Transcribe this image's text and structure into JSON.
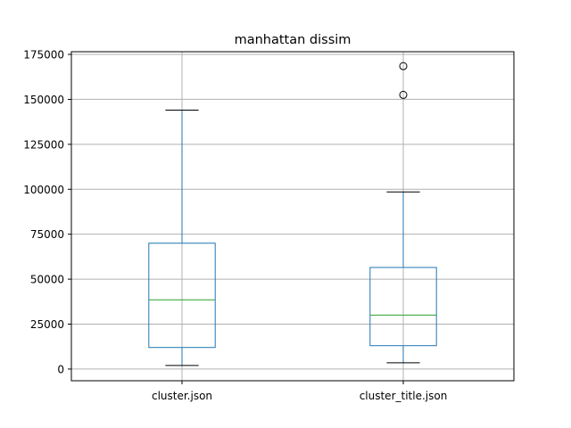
{
  "chart_data": {
    "type": "boxplot",
    "title": "manhattan dissim",
    "xlabel": "",
    "ylabel": "",
    "categories": [
      "cluster.json",
      "cluster_title.json"
    ],
    "boxes": [
      {
        "category": "cluster.json",
        "whisker_low": 2000,
        "q1": 12000,
        "median": 38500,
        "q3": 70000,
        "whisker_high": 144000,
        "outliers": []
      },
      {
        "category": "cluster_title.json",
        "whisker_low": 3500,
        "q1": 13000,
        "median": 30000,
        "q3": 56500,
        "whisker_high": 98500,
        "outliers": [
          152500,
          168500
        ]
      }
    ],
    "y_ticks": [
      0,
      25000,
      50000,
      75000,
      100000,
      125000,
      150000,
      175000
    ],
    "ylim": [
      -6500,
      176500
    ],
    "grid": true,
    "colors": {
      "box": "#1f77b4",
      "median": "#2ca02c",
      "whisker_cap": "#000000",
      "grid": "#b0b0b0",
      "outlier": "#000000"
    }
  }
}
